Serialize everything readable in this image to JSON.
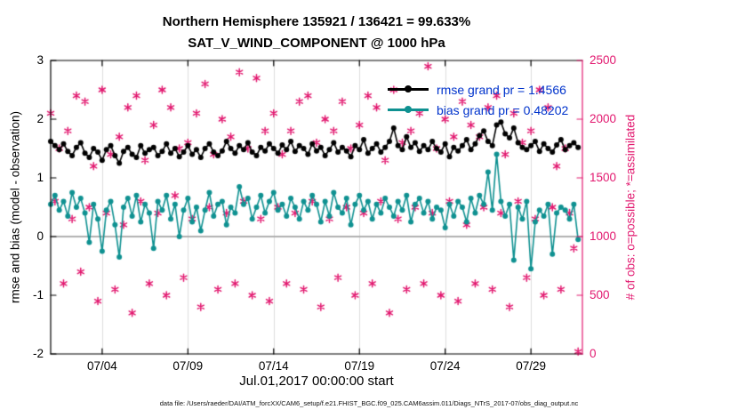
{
  "title": {
    "line1": "Northern Hemisphere 135921 / 136421 = 99.633%",
    "line2": "SAT_V_WIND_COMPONENT @ 1000 hPa"
  },
  "legend": [
    {
      "label": "rmse grand pr = 1.4566"
    },
    {
      "label": "bias grand pr = 0.48202"
    }
  ],
  "axes": {
    "left": {
      "label": "rmse and bias (model - observation)",
      "ticks": [
        -2,
        -1,
        0,
        1,
        2,
        3
      ],
      "range": [
        -2,
        3
      ]
    },
    "right": {
      "label": "# of obs: o=possible; *=assimilated",
      "ticks": [
        0,
        500,
        1000,
        1500,
        2000,
        2500
      ],
      "range": [
        0,
        2500
      ],
      "color": "#e2186f"
    },
    "x": {
      "label": "Jul.01,2017 00:00:00 start",
      "tick_labels": [
        "07/04",
        "07/09",
        "07/14",
        "07/19",
        "07/24",
        "07/29"
      ],
      "tick_days": [
        3,
        8,
        13,
        18,
        23,
        28
      ],
      "range_days": [
        0,
        31
      ]
    }
  },
  "footer": "data file: /Users/raeder/DAI/ATM_forcXX/CAM6_setup/f.e21.FHIST_BGC.f09_025.CAM6assim.011/Diags_NTrS_2017-07/obs_diag_output.nc",
  "colors": {
    "legend_text": "#0033cc",
    "grid": "#dcdcdc",
    "zero_line": "#b0b0b0",
    "axis": "#000000"
  },
  "chart_data": {
    "type": "line",
    "title": "Northern Hemisphere 135921 / 136421 = 99.633% — SAT_V_WIND_COMPONENT @ 1000 hPa",
    "x_start": "2017-07-01 00:00:00",
    "x_step_days": 0.25,
    "xlim_days": [
      0,
      31
    ],
    "ylim_left": [
      -2,
      3
    ],
    "ylim_right": [
      0,
      2500
    ],
    "ylabel_left": "rmse and bias (model - observation)",
    "ylabel_right": "# of obs: o=possible; *=assimilated",
    "xlabel": "Jul.01,2017 00:00:00 start",
    "grid": "vertical-only",
    "legend_position": "top-right-inside",
    "series": [
      {
        "name": "rmse",
        "axis": "left",
        "color": "#000000",
        "marker": "circle",
        "grand_mean": 1.4566,
        "values": [
          1.62,
          1.55,
          1.48,
          1.58,
          1.45,
          1.38,
          1.52,
          1.6,
          1.42,
          1.35,
          1.5,
          1.44,
          1.3,
          1.48,
          1.55,
          1.38,
          1.25,
          1.45,
          1.52,
          1.4,
          1.35,
          1.55,
          1.42,
          1.48,
          1.52,
          1.38,
          1.45,
          1.58,
          1.42,
          1.5,
          1.36,
          1.44,
          1.55,
          1.4,
          1.48,
          1.35,
          1.5,
          1.58,
          1.44,
          1.38,
          1.46,
          1.62,
          1.5,
          1.42,
          1.55,
          1.48,
          1.6,
          1.44,
          1.38,
          1.52,
          1.46,
          1.58,
          1.5,
          1.42,
          1.56,
          1.48,
          1.62,
          1.45,
          1.55,
          1.5,
          1.4,
          1.58,
          1.46,
          1.52,
          1.38,
          1.48,
          1.6,
          1.44,
          1.52,
          1.46,
          1.36,
          1.55,
          1.48,
          1.65,
          1.42,
          1.5,
          1.58,
          1.44,
          1.52,
          1.62,
          1.85,
          1.55,
          1.48,
          1.7,
          1.52,
          1.6,
          1.45,
          1.55,
          1.48,
          1.62,
          1.5,
          1.44,
          1.58,
          1.36,
          1.52,
          1.46,
          1.55,
          1.65,
          1.48,
          1.58,
          1.72,
          1.8,
          1.62,
          1.55,
          1.9,
          1.95,
          1.75,
          1.68,
          1.85,
          1.6,
          1.52,
          1.48,
          1.55,
          1.62,
          1.45,
          1.58,
          1.5,
          1.44,
          1.56,
          1.65,
          1.48,
          1.55,
          1.6,
          1.52
        ]
      },
      {
        "name": "bias",
        "axis": "left",
        "color": "#0f9191",
        "marker": "circle",
        "grand_mean": 0.48202,
        "values": [
          0.55,
          0.7,
          0.45,
          0.6,
          0.35,
          0.75,
          0.5,
          0.65,
          0.4,
          -0.1,
          0.55,
          0.3,
          -0.25,
          0.45,
          0.6,
          0.2,
          -0.35,
          0.5,
          0.65,
          0.35,
          0.7,
          0.25,
          0.55,
          0.4,
          -0.2,
          0.6,
          0.45,
          0.7,
          0.3,
          0.55,
          0.0,
          0.45,
          0.65,
          0.25,
          0.5,
          0.1,
          0.45,
          0.75,
          0.35,
          0.55,
          0.6,
          0.2,
          0.5,
          0.4,
          0.85,
          0.55,
          0.65,
          0.3,
          0.5,
          0.7,
          0.4,
          0.6,
          0.75,
          0.45,
          0.55,
          0.35,
          0.65,
          0.5,
          0.3,
          0.6,
          0.45,
          0.7,
          0.55,
          0.25,
          0.6,
          0.35,
          0.75,
          0.5,
          0.4,
          0.65,
          0.2,
          0.55,
          0.7,
          0.45,
          0.6,
          0.3,
          0.55,
          0.4,
          0.65,
          0.5,
          0.35,
          0.6,
          0.45,
          0.7,
          0.25,
          0.55,
          0.65,
          0.4,
          0.6,
          0.3,
          0.5,
          0.45,
          0.15,
          0.55,
          0.35,
          0.6,
          0.5,
          0.25,
          0.65,
          0.4,
          0.7,
          0.55,
          1.1,
          0.45,
          1.4,
          0.6,
          0.35,
          0.55,
          -0.4,
          0.5,
          0.3,
          0.6,
          -0.55,
          0.25,
          0.45,
          0.35,
          0.55,
          -0.3,
          0.4,
          0.5,
          0.45,
          0.3,
          0.55,
          -0.05
        ]
      },
      {
        "name": "num_obs_assimilated",
        "axis": "right",
        "color": "#e2186f",
        "marker": "asterisk",
        "values": [
          2050,
          1300,
          1750,
          600,
          1900,
          1150,
          2200,
          700,
          2150,
          1250,
          1600,
          450,
          2250,
          1200,
          1700,
          550,
          1850,
          1100,
          2100,
          350,
          2200,
          1300,
          1650,
          600,
          1950,
          1200,
          2250,
          500,
          2100,
          1350,
          1750,
          650,
          1800,
          1150,
          2050,
          400,
          2300,
          1250,
          1700,
          550,
          2000,
          1200,
          1850,
          600,
          2400,
          1300,
          1750,
          500,
          2350,
          1150,
          1900,
          450,
          2050,
          1250,
          1700,
          600,
          1900,
          1200,
          2150,
          550,
          2200,
          1300,
          1800,
          400,
          2000,
          1150,
          1900,
          650,
          2150,
          1250,
          1750,
          500,
          1950,
          1200,
          2200,
          600,
          2100,
          1300,
          1650,
          350,
          2250,
          1150,
          1800,
          550,
          1900,
          1250,
          2050,
          600,
          2450,
          1200,
          1750,
          500,
          2000,
          1300,
          1850,
          450,
          2150,
          1100,
          1950,
          600,
          1850,
          1250,
          2100,
          550,
          2200,
          1200,
          1700,
          400,
          2050,
          1300,
          1800,
          650,
          1900,
          1150,
          2250,
          500,
          2100,
          1250,
          1600,
          550,
          1750,
          1200,
          900,
          20
        ]
      }
    ]
  }
}
